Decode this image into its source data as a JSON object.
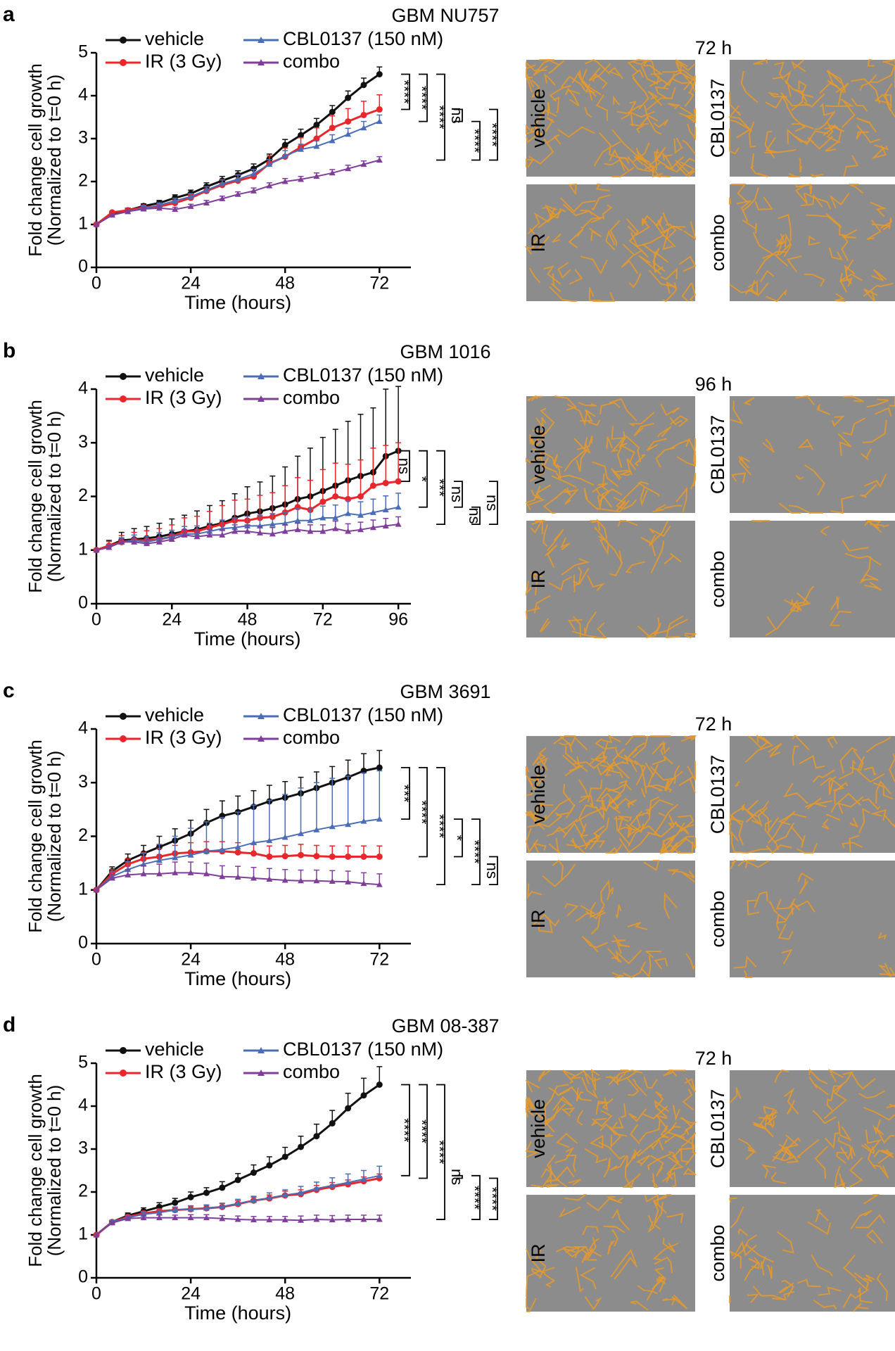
{
  "chart_data": [
    {
      "type": "line",
      "panel_label": "a",
      "title": "GBM NU757",
      "xlabel": "Time (hours)",
      "ylabel": [
        "Fold change cell growth",
        "(Normalized to t=0 h)"
      ],
      "x": [
        0,
        4,
        8,
        12,
        16,
        20,
        24,
        28,
        32,
        36,
        40,
        44,
        48,
        52,
        56,
        60,
        64,
        68,
        72
      ],
      "xlim": [
        0,
        80
      ],
      "xticks": [
        0,
        24,
        48,
        72
      ],
      "ylim": [
        0,
        5
      ],
      "yticks": [
        0,
        1,
        2,
        3,
        4,
        5
      ],
      "series": [
        {
          "name": "vehicle",
          "color": "#111111",
          "marker": "circle",
          "values": [
            1,
            1.25,
            1.33,
            1.43,
            1.5,
            1.62,
            1.72,
            1.88,
            2.02,
            2.15,
            2.3,
            2.52,
            2.85,
            3.08,
            3.32,
            3.62,
            3.95,
            4.25,
            4.5
          ],
          "errors": [
            0,
            0.04,
            0.05,
            0.05,
            0.06,
            0.07,
            0.08,
            0.09,
            0.1,
            0.1,
            0.11,
            0.12,
            0.13,
            0.14,
            0.15,
            0.15,
            0.16,
            0.16,
            0.17
          ]
        },
        {
          "name": "IR (3 Gy)",
          "color": "#e8262b",
          "marker": "circle",
          "values": [
            1,
            1.28,
            1.33,
            1.4,
            1.42,
            1.5,
            1.62,
            1.78,
            1.92,
            2.02,
            2.12,
            2.42,
            2.58,
            2.8,
            3.0,
            3.25,
            3.4,
            3.55,
            3.68
          ],
          "errors": [
            0,
            0.03,
            0.04,
            0.05,
            0.06,
            0.07,
            0.08,
            0.1,
            0.12,
            0.14,
            0.16,
            0.18,
            0.2,
            0.22,
            0.25,
            0.28,
            0.3,
            0.32,
            0.34
          ]
        },
        {
          "name": "CBL0137 (150 nM)",
          "color": "#4a6db5",
          "marker": "triangle",
          "values": [
            1,
            1.22,
            1.3,
            1.38,
            1.45,
            1.55,
            1.65,
            1.8,
            1.95,
            2.05,
            2.18,
            2.4,
            2.6,
            2.75,
            2.82,
            2.95,
            3.1,
            3.25,
            3.4
          ],
          "errors": [
            0,
            0.03,
            0.04,
            0.05,
            0.05,
            0.06,
            0.07,
            0.08,
            0.09,
            0.1,
            0.1,
            0.11,
            0.12,
            0.12,
            0.13,
            0.14,
            0.14,
            0.15,
            0.15
          ]
        },
        {
          "name": "combo",
          "color": "#7f3f98",
          "marker": "triangle",
          "values": [
            1,
            1.22,
            1.3,
            1.36,
            1.38,
            1.35,
            1.42,
            1.5,
            1.6,
            1.7,
            1.78,
            1.9,
            2.0,
            2.05,
            2.12,
            2.2,
            2.3,
            2.4,
            2.5
          ],
          "errors": [
            0,
            0.03,
            0.04,
            0.04,
            0.05,
            0.05,
            0.05,
            0.06,
            0.06,
            0.06,
            0.07,
            0.07,
            0.07,
            0.07,
            0.08,
            0.08,
            0.08,
            0.08,
            0.08
          ]
        }
      ],
      "significance": [
        "****",
        "****",
        "****",
        "ns",
        "****",
        "****"
      ],
      "image_title": "72 h",
      "image_labels": [
        "vehicle",
        "CBL0137",
        "IR",
        "combo"
      ]
    },
    {
      "type": "line",
      "panel_label": "b",
      "title": "GBM 1016",
      "xlabel": "Time (hours)",
      "ylabel": [
        "Fold change cell growth",
        "(Normalized to t=0 h)"
      ],
      "x": [
        0,
        4,
        8,
        12,
        16,
        20,
        24,
        28,
        32,
        36,
        40,
        44,
        48,
        52,
        56,
        60,
        64,
        68,
        72,
        76,
        80,
        84,
        88,
        92,
        96
      ],
      "xlim": [
        0,
        100
      ],
      "xticks": [
        0,
        24,
        48,
        72,
        96
      ],
      "ylim": [
        0,
        4
      ],
      "yticks": [
        0,
        1,
        2,
        3,
        4
      ],
      "series": [
        {
          "name": "vehicle",
          "color": "#111111",
          "marker": "circle",
          "values": [
            1,
            1.08,
            1.18,
            1.2,
            1.22,
            1.25,
            1.3,
            1.35,
            1.38,
            1.45,
            1.5,
            1.6,
            1.68,
            1.72,
            1.78,
            1.85,
            1.95,
            2.0,
            2.1,
            2.2,
            2.3,
            2.38,
            2.45,
            2.75,
            2.85
          ],
          "errors": [
            0,
            0.1,
            0.15,
            0.2,
            0.22,
            0.25,
            0.28,
            0.3,
            0.35,
            0.38,
            0.42,
            0.45,
            0.5,
            0.55,
            0.6,
            0.7,
            0.8,
            0.9,
            1.0,
            1.05,
            1.1,
            1.15,
            1.2,
            1.25,
            1.2
          ]
        },
        {
          "name": "IR (3 Gy)",
          "color": "#e8262b",
          "marker": "circle",
          "values": [
            1,
            1.08,
            1.15,
            1.18,
            1.18,
            1.2,
            1.25,
            1.35,
            1.35,
            1.42,
            1.48,
            1.55,
            1.55,
            1.6,
            1.62,
            1.7,
            1.8,
            1.75,
            1.9,
            2.0,
            1.95,
            2.0,
            2.2,
            2.25,
            2.28
          ],
          "errors": [
            0,
            0.08,
            0.12,
            0.15,
            0.18,
            0.2,
            0.22,
            0.25,
            0.28,
            0.3,
            0.35,
            0.38,
            0.4,
            0.42,
            0.45,
            0.5,
            0.55,
            0.55,
            0.6,
            0.62,
            0.65,
            0.68,
            0.7,
            0.7,
            0.72
          ]
        },
        {
          "name": "CBL0137 (150 nM)",
          "color": "#4a6db5",
          "marker": "triangle",
          "values": [
            1,
            1.05,
            1.15,
            1.18,
            1.15,
            1.2,
            1.25,
            1.3,
            1.3,
            1.35,
            1.4,
            1.42,
            1.45,
            1.45,
            1.48,
            1.5,
            1.55,
            1.55,
            1.6,
            1.6,
            1.68,
            1.65,
            1.7,
            1.75,
            1.8
          ],
          "errors": [
            0,
            0.05,
            0.08,
            0.1,
            0.1,
            0.12,
            0.12,
            0.14,
            0.15,
            0.15,
            0.16,
            0.18,
            0.18,
            0.2,
            0.2,
            0.2,
            0.22,
            0.22,
            0.22,
            0.24,
            0.24,
            0.25,
            0.25,
            0.26,
            0.26
          ]
        },
        {
          "name": "combo",
          "color": "#7f3f98",
          "marker": "triangle",
          "values": [
            1,
            1.05,
            1.15,
            1.15,
            1.12,
            1.15,
            1.2,
            1.28,
            1.25,
            1.28,
            1.28,
            1.35,
            1.35,
            1.32,
            1.3,
            1.35,
            1.38,
            1.35,
            1.35,
            1.4,
            1.35,
            1.38,
            1.42,
            1.45,
            1.48
          ],
          "errors": [
            0,
            0.04,
            0.06,
            0.08,
            0.08,
            0.08,
            0.1,
            0.1,
            0.1,
            0.1,
            0.1,
            0.12,
            0.12,
            0.12,
            0.12,
            0.12,
            0.12,
            0.12,
            0.12,
            0.14,
            0.14,
            0.14,
            0.14,
            0.14,
            0.14
          ]
        }
      ],
      "significance": [
        "ns",
        "*",
        "***",
        "ns",
        "ns",
        "ns"
      ],
      "image_title": "96 h",
      "image_labels": [
        "vehicle",
        "CBL0137",
        "IR",
        "combo"
      ]
    },
    {
      "type": "line",
      "panel_label": "c",
      "title": "GBM 3691",
      "xlabel": "Time (hours)",
      "ylabel": [
        "Fold change cell growth",
        "(Normalized to t=0 h)"
      ],
      "x": [
        0,
        4,
        8,
        12,
        16,
        20,
        24,
        28,
        32,
        36,
        40,
        44,
        48,
        52,
        56,
        60,
        64,
        68,
        72
      ],
      "xlim": [
        0,
        80
      ],
      "xticks": [
        0,
        24,
        48,
        72
      ],
      "ylim": [
        0,
        4
      ],
      "yticks": [
        0,
        1,
        2,
        3,
        4
      ],
      "series": [
        {
          "name": "vehicle",
          "color": "#111111",
          "marker": "circle",
          "values": [
            1,
            1.35,
            1.55,
            1.68,
            1.8,
            1.92,
            2.05,
            2.25,
            2.38,
            2.45,
            2.55,
            2.65,
            2.72,
            2.8,
            2.9,
            3.0,
            3.1,
            3.22,
            3.28
          ],
          "errors": [
            0,
            0.08,
            0.12,
            0.15,
            0.2,
            0.22,
            0.25,
            0.25,
            0.28,
            0.3,
            0.3,
            0.3,
            0.3,
            0.3,
            0.3,
            0.3,
            0.32,
            0.32,
            0.32
          ]
        },
        {
          "name": "IR (3 Gy)",
          "color": "#e8262b",
          "marker": "circle",
          "values": [
            1,
            1.3,
            1.48,
            1.58,
            1.62,
            1.68,
            1.7,
            1.72,
            1.72,
            1.7,
            1.68,
            1.62,
            1.63,
            1.65,
            1.63,
            1.62,
            1.62,
            1.62,
            1.62
          ],
          "errors": [
            0,
            0.08,
            0.1,
            0.12,
            0.15,
            0.15,
            0.18,
            0.18,
            0.18,
            0.18,
            0.18,
            0.2,
            0.2,
            0.2,
            0.2,
            0.2,
            0.2,
            0.2,
            0.2
          ]
        },
        {
          "name": "CBL0137 (150 nM)",
          "color": "#4a6db5",
          "marker": "triangle",
          "values": [
            1,
            1.25,
            1.38,
            1.48,
            1.55,
            1.6,
            1.65,
            1.72,
            1.75,
            1.8,
            1.88,
            1.92,
            1.98,
            2.05,
            2.12,
            2.18,
            2.22,
            2.28,
            2.32
          ],
          "errors": [
            0,
            0.1,
            0.15,
            0.2,
            0.3,
            0.4,
            0.5,
            0.55,
            0.6,
            0.65,
            0.7,
            0.75,
            0.8,
            0.85,
            0.88,
            0.9,
            0.9,
            0.9,
            0.9
          ]
        },
        {
          "name": "combo",
          "color": "#7f3f98",
          "marker": "triangle",
          "values": [
            1,
            1.22,
            1.28,
            1.3,
            1.3,
            1.32,
            1.32,
            1.3,
            1.25,
            1.24,
            1.22,
            1.2,
            1.18,
            1.17,
            1.17,
            1.16,
            1.15,
            1.12,
            1.1
          ],
          "errors": [
            0,
            0.06,
            0.1,
            0.15,
            0.18,
            0.2,
            0.2,
            0.2,
            0.2,
            0.2,
            0.2,
            0.2,
            0.2,
            0.2,
            0.2,
            0.2,
            0.2,
            0.2,
            0.2
          ]
        }
      ],
      "significance": [
        "***",
        "****",
        "****",
        "*",
        "****",
        "ns"
      ],
      "image_title": "72 h",
      "image_labels": [
        "vehicle",
        "CBL0137",
        "IR",
        "combo"
      ]
    },
    {
      "type": "line",
      "panel_label": "d",
      "title": "GBM 08-387",
      "xlabel": "Time (hours)",
      "ylabel": [
        "Fold change cell growth",
        "(Normalized to t=0 h)"
      ],
      "x": [
        0,
        4,
        8,
        12,
        16,
        20,
        24,
        28,
        32,
        36,
        40,
        44,
        48,
        52,
        56,
        60,
        64,
        68,
        72
      ],
      "xlim": [
        0,
        80
      ],
      "xticks": [
        0,
        24,
        48,
        72
      ],
      "ylim": [
        0,
        5
      ],
      "yticks": [
        0,
        1,
        2,
        3,
        4,
        5
      ],
      "series": [
        {
          "name": "vehicle",
          "color": "#111111",
          "marker": "circle",
          "values": [
            1,
            1.3,
            1.45,
            1.55,
            1.65,
            1.75,
            1.88,
            1.98,
            2.1,
            2.28,
            2.45,
            2.62,
            2.82,
            3.05,
            3.3,
            3.6,
            3.95,
            4.25,
            4.5
          ],
          "errors": [
            0,
            0.04,
            0.06,
            0.08,
            0.1,
            0.1,
            0.12,
            0.12,
            0.14,
            0.15,
            0.18,
            0.2,
            0.22,
            0.25,
            0.28,
            0.3,
            0.35,
            0.4,
            0.42
          ]
        },
        {
          "name": "IR (3 Gy)",
          "color": "#e8262b",
          "marker": "circle",
          "values": [
            1,
            1.3,
            1.42,
            1.5,
            1.55,
            1.58,
            1.6,
            1.62,
            1.65,
            1.72,
            1.8,
            1.85,
            1.92,
            1.95,
            2.05,
            2.12,
            2.18,
            2.25,
            2.32
          ],
          "errors": [
            0,
            0.03,
            0.04,
            0.05,
            0.06,
            0.06,
            0.07,
            0.07,
            0.08,
            0.08,
            0.08,
            0.08,
            0.1,
            0.1,
            0.1,
            0.1,
            0.1,
            0.1,
            0.1
          ]
        },
        {
          "name": "CBL0137 (150 nM)",
          "color": "#4a6db5",
          "marker": "triangle",
          "values": [
            1,
            1.3,
            1.4,
            1.48,
            1.52,
            1.58,
            1.6,
            1.62,
            1.66,
            1.73,
            1.8,
            1.86,
            1.93,
            1.98,
            2.08,
            2.15,
            2.22,
            2.3,
            2.38
          ],
          "errors": [
            0,
            0.04,
            0.05,
            0.06,
            0.06,
            0.07,
            0.08,
            0.08,
            0.08,
            0.1,
            0.1,
            0.12,
            0.12,
            0.15,
            0.15,
            0.18,
            0.2,
            0.2,
            0.22
          ]
        },
        {
          "name": "combo",
          "color": "#7f3f98",
          "marker": "triangle",
          "values": [
            1,
            1.28,
            1.38,
            1.4,
            1.4,
            1.4,
            1.4,
            1.4,
            1.38,
            1.36,
            1.35,
            1.35,
            1.35,
            1.34,
            1.36,
            1.35,
            1.36,
            1.36,
            1.36
          ],
          "errors": [
            0,
            0.03,
            0.05,
            0.06,
            0.06,
            0.06,
            0.07,
            0.07,
            0.07,
            0.08,
            0.08,
            0.08,
            0.08,
            0.1,
            0.1,
            0.1,
            0.1,
            0.1,
            0.1
          ]
        }
      ],
      "significance": [
        "****",
        "****",
        "****",
        "ns",
        "****",
        "****"
      ],
      "image_title": "72 h",
      "image_labels": [
        "vehicle",
        "CBL0137",
        "IR",
        "combo"
      ]
    }
  ]
}
